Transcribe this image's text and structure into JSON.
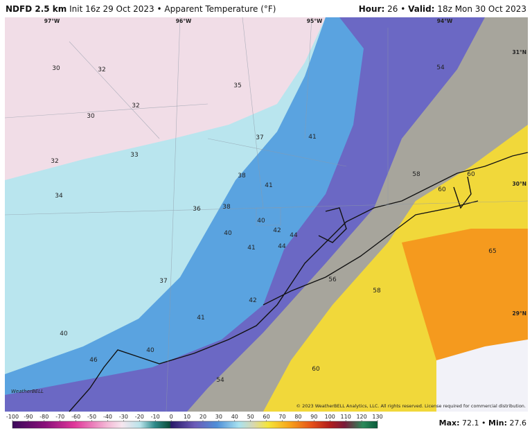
{
  "header": {
    "model": "NDFD 2.5 km",
    "info": "Init 16z 29 Oct 2023",
    "separator": "•",
    "field": "Apparent Temperature (°F)",
    "hour_label": "Hour:",
    "hour_value": "26",
    "valid_label": "Valid:",
    "valid_value": "18z Mon 30 Oct 2023"
  },
  "map": {
    "longitudes": [
      "97°W",
      "96°W",
      "95°W",
      "94°W"
    ],
    "latitudes": [
      "31°N",
      "30°N",
      "29°N"
    ],
    "labels": [
      "30",
      "32",
      "32",
      "30",
      "35",
      "37",
      "41",
      "54",
      "33",
      "32",
      "38",
      "41",
      "58",
      "60",
      "60",
      "34",
      "36",
      "38",
      "40",
      "42",
      "44",
      "40",
      "41",
      "44",
      "65",
      "56",
      "37",
      "58",
      "42",
      "41",
      "40",
      "40",
      "46",
      "60",
      "54"
    ],
    "logo": "WeatherBELL",
    "copyright": "© 2023 WeatherBELL Analytics, LLC. All rights reserved. License required for commercial distribution."
  },
  "colorbar": {
    "ticks": [
      -100,
      -90,
      -80,
      -70,
      -60,
      -50,
      -40,
      -30,
      -20,
      -10,
      0,
      10,
      20,
      30,
      40,
      50,
      60,
      70,
      80,
      90,
      100,
      110,
      120,
      130
    ]
  },
  "footer": {
    "max_label": "Max:",
    "max_value": "72.1",
    "min_label": "Min:",
    "min_value": "27.6"
  }
}
